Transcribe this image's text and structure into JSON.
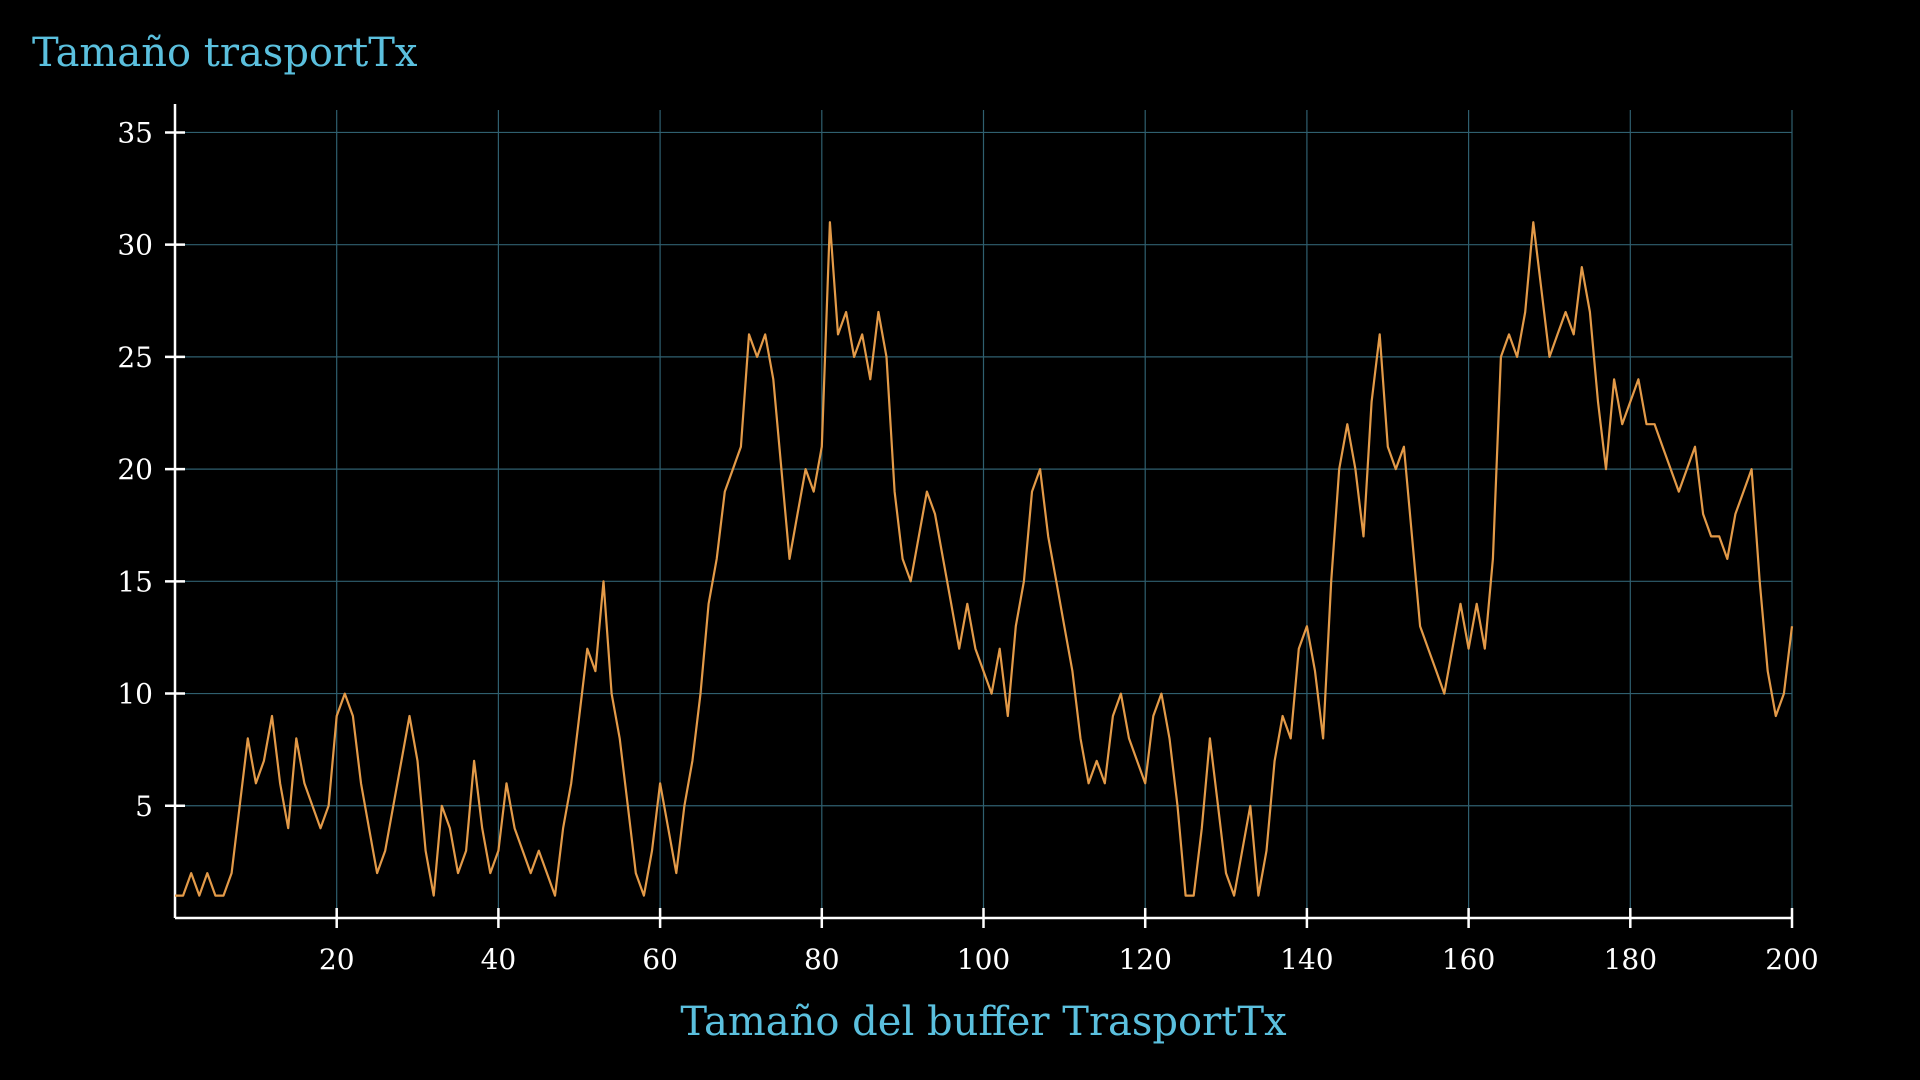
{
  "chart_data": {
    "type": "line",
    "title": "Tamaño trasportTx",
    "xlabel": "Tamaño del buffer TrasportTx",
    "ylabel": "",
    "xlim": [
      0,
      200
    ],
    "ylim": [
      0,
      36
    ],
    "grid": true,
    "x_ticks": [
      20,
      40,
      60,
      80,
      100,
      120,
      140,
      160,
      180,
      200
    ],
    "y_ticks": [
      5,
      10,
      15,
      20,
      25,
      30,
      35
    ],
    "series": [
      {
        "color": "#e39a48",
        "x": [
          0,
          1,
          2,
          3,
          4,
          5,
          6,
          7,
          8,
          9,
          10,
          11,
          12,
          13,
          14,
          15,
          16,
          17,
          18,
          19,
          20,
          21,
          22,
          23,
          24,
          25,
          26,
          27,
          28,
          29,
          30,
          31,
          32,
          33,
          34,
          35,
          36,
          37,
          38,
          39,
          40,
          41,
          42,
          43,
          44,
          45,
          46,
          47,
          48,
          49,
          50,
          51,
          52,
          53,
          54,
          55,
          56,
          57,
          58,
          59,
          60,
          61,
          62,
          63,
          64,
          65,
          66,
          67,
          68,
          69,
          70,
          71,
          72,
          73,
          74,
          75,
          76,
          77,
          78,
          79,
          80,
          81,
          82,
          83,
          84,
          85,
          86,
          87,
          88,
          89,
          90,
          91,
          92,
          93,
          94,
          95,
          96,
          97,
          98,
          99,
          100,
          101,
          102,
          103,
          104,
          105,
          106,
          107,
          108,
          109,
          110,
          111,
          112,
          113,
          114,
          115,
          116,
          117,
          118,
          119,
          120,
          121,
          122,
          123,
          124,
          125,
          126,
          127,
          128,
          129,
          130,
          131,
          132,
          133,
          134,
          135,
          136,
          137,
          138,
          139,
          140,
          141,
          142,
          143,
          144,
          145,
          146,
          147,
          148,
          149,
          150,
          151,
          152,
          153,
          154,
          155,
          156,
          157,
          158,
          159,
          160,
          161,
          162,
          163,
          164,
          165,
          166,
          167,
          168,
          169,
          170,
          171,
          172,
          173,
          174,
          175,
          176,
          177,
          178,
          179,
          180,
          181,
          182,
          183,
          184,
          185,
          186,
          187,
          188,
          189,
          190,
          191,
          192,
          193,
          194,
          195,
          196,
          197,
          198,
          199,
          200
        ],
        "y": [
          1,
          1,
          2,
          1,
          2,
          1,
          1,
          2,
          5,
          8,
          6,
          7,
          9,
          6,
          4,
          8,
          6,
          5,
          4,
          5,
          9,
          10,
          9,
          6,
          4,
          2,
          3,
          5,
          7,
          9,
          7,
          3,
          1,
          5,
          4,
          2,
          3,
          7,
          4,
          2,
          3,
          6,
          4,
          3,
          2,
          3,
          2,
          1,
          4,
          6,
          9,
          12,
          11,
          15,
          10,
          8,
          5,
          2,
          1,
          3,
          6,
          4,
          2,
          5,
          7,
          10,
          14,
          16,
          19,
          20,
          21,
          26,
          25,
          26,
          24,
          20,
          16,
          18,
          20,
          19,
          21,
          31,
          26,
          27,
          25,
          26,
          24,
          27,
          25,
          19,
          16,
          15,
          17,
          19,
          18,
          16,
          14,
          12,
          14,
          12,
          11,
          10,
          12,
          9,
          13,
          15,
          19,
          20,
          17,
          15,
          13,
          11,
          8,
          6,
          7,
          6,
          9,
          10,
          8,
          7,
          6,
          9,
          10,
          8,
          5,
          1,
          1,
          4,
          8,
          5,
          2,
          1,
          3,
          5,
          1,
          3,
          7,
          9,
          8,
          12,
          13,
          11,
          8,
          15,
          20,
          22,
          20,
          17,
          23,
          26,
          21,
          20,
          21,
          17,
          13,
          12,
          11,
          10,
          12,
          14,
          12,
          14,
          12,
          16,
          25,
          26,
          25,
          27,
          31,
          28,
          25,
          26,
          27,
          26,
          29,
          27,
          23,
          20,
          24,
          22,
          23,
          24,
          22,
          22,
          21,
          20,
          19,
          20,
          21,
          18,
          17,
          17,
          16,
          18,
          19,
          20,
          15,
          11,
          9,
          10,
          13
        ]
      }
    ]
  }
}
